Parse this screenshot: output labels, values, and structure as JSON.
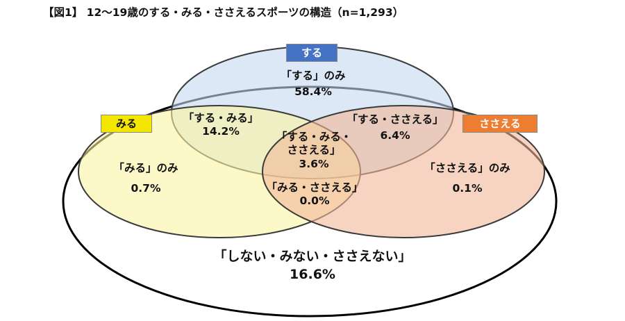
{
  "title": "【図1】 12～19歳のする・みる・ささえるスポーツの構造（n=1,293）",
  "badges": {
    "suru": {
      "text": "する",
      "bg": "#4472c4",
      "fg": "#ffffff"
    },
    "miru": {
      "text": "みる",
      "bg": "#f5e600",
      "fg": "#111111"
    },
    "sasaeru": {
      "text": "ささえる",
      "bg": "#ed7d31",
      "fg": "#ffffff"
    }
  },
  "regions": {
    "suru_only": {
      "label": "「する」のみ",
      "value": "58.4%"
    },
    "suru_miru": {
      "label": "「する・みる」",
      "value": "14.2%"
    },
    "suru_sasaeru": {
      "label": "「する・ささえる」",
      "value": "6.4%"
    },
    "all_three": {
      "label1": "「する・みる・",
      "label2": "ささえる」",
      "value": "3.6%"
    },
    "miru_only": {
      "label": "「みる」のみ",
      "value": "0.7%"
    },
    "sasaeru_only": {
      "label": "「ささえる」のみ",
      "value": "0.1%"
    },
    "miru_sasaeru": {
      "label": "「みる・ささえる」",
      "value": "0.0%"
    },
    "none": {
      "label": "「しない・みない・ささえない」",
      "value": "16.6%"
    }
  },
  "colors": {
    "suru_fill": "#c5d9ef",
    "miru_fill": "#fbf3a3",
    "sasaeru_fill": "#f2b79a",
    "outline": "#3a3a3a"
  }
}
